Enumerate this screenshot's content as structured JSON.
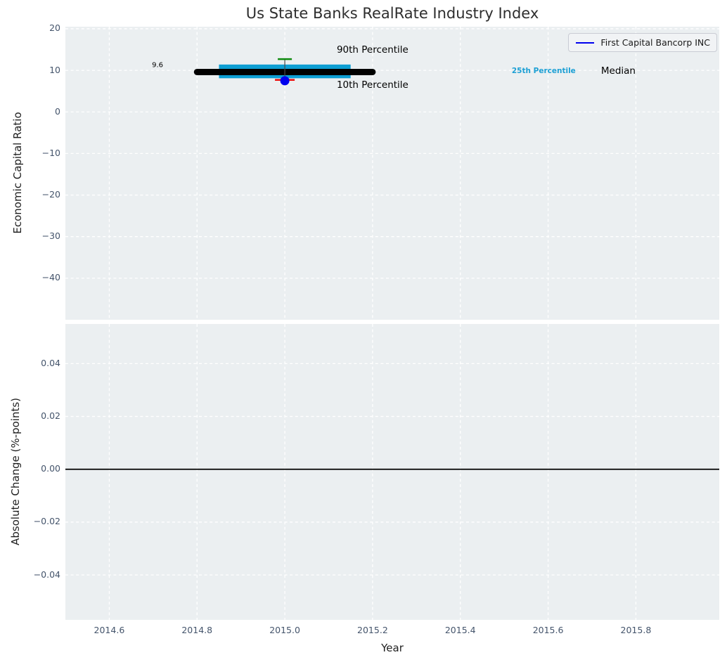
{
  "title": "Us State Banks RealRate Industry Index",
  "colors": {
    "plot_bg": "#ebeff1",
    "grid": "#ffffff",
    "tick_label": "#44546b",
    "box_fill": "#0d9ed3",
    "median_line": "#000000",
    "p90_cap": "#0e8a0e",
    "p10_cap": "#ec1313",
    "whisker": "#4a4a4a",
    "company_dot": "#0000ee",
    "legend_line": "#0000ee",
    "zero_line": "#000000"
  },
  "chart_data": [
    {
      "type": "box",
      "title": "Us State Banks RealRate Industry Index",
      "ylabel": "Economic Capital Ratio",
      "xlim": [
        2014.5,
        2015.99
      ],
      "ylim": [
        -50,
        20.5
      ],
      "yticks": [
        "20",
        "10",
        "0",
        "−10",
        "−20",
        "−30",
        "−40"
      ],
      "ytick_values": [
        20,
        10,
        0,
        -10,
        -20,
        -30,
        -40
      ],
      "grid": true,
      "legend": {
        "position": "upper right",
        "entries": [
          {
            "label": "First Capital Bancorp INC",
            "color": "#0000ee"
          }
        ]
      },
      "box": {
        "x_center": 2015.0,
        "box_x_left": 2014.85,
        "box_x_right": 2015.15,
        "median_x_left": 2014.8,
        "median_x_right": 2015.2,
        "median": 9.6,
        "q25": 8.1,
        "q75": 11.4,
        "p10": 7.7,
        "p90": 12.7
      },
      "company_point": {
        "label": "First Capital Bancorp INC",
        "x": 2015.0,
        "y": 7.5
      },
      "annotations": [
        {
          "text": "9.6",
          "x": 2014.71,
          "y": 11.2,
          "color": "#000000",
          "size": 10,
          "bold": false
        },
        {
          "text": "90th Percentile",
          "x": 2015.2,
          "y": 14.9,
          "color": "#000000",
          "size": 13.5,
          "bold": false
        },
        {
          "text": "10th Percentile",
          "x": 2015.2,
          "y": 6.5,
          "color": "#000000",
          "size": 13.5,
          "bold": false
        },
        {
          "text": "25th Percentile",
          "x": 2015.59,
          "y": 9.9,
          "color": "#1b9fd4",
          "size": 10.5,
          "bold": true
        },
        {
          "text": "Median",
          "x": 2015.76,
          "y": 9.9,
          "color": "#000000",
          "size": 13.5,
          "bold": false
        }
      ]
    },
    {
      "type": "line",
      "ylabel": "Absolute Change (%-points)",
      "xlabel": "Year",
      "xlim": [
        2014.5,
        2015.99
      ],
      "ylim": [
        -0.057,
        0.055
      ],
      "yticks": [
        "0.04",
        "0.02",
        "0.00",
        "−0.02",
        "−0.04"
      ],
      "ytick_values": [
        0.04,
        0.02,
        0.0,
        -0.02,
        -0.04
      ],
      "xticks": [
        "2014.6",
        "2014.8",
        "2015.0",
        "2015.2",
        "2015.4",
        "2015.6",
        "2015.8"
      ],
      "xtick_values": [
        2014.6,
        2014.8,
        2015.0,
        2015.2,
        2015.4,
        2015.6,
        2015.8
      ],
      "grid": true,
      "zero_line": 0.0,
      "series": []
    }
  ]
}
